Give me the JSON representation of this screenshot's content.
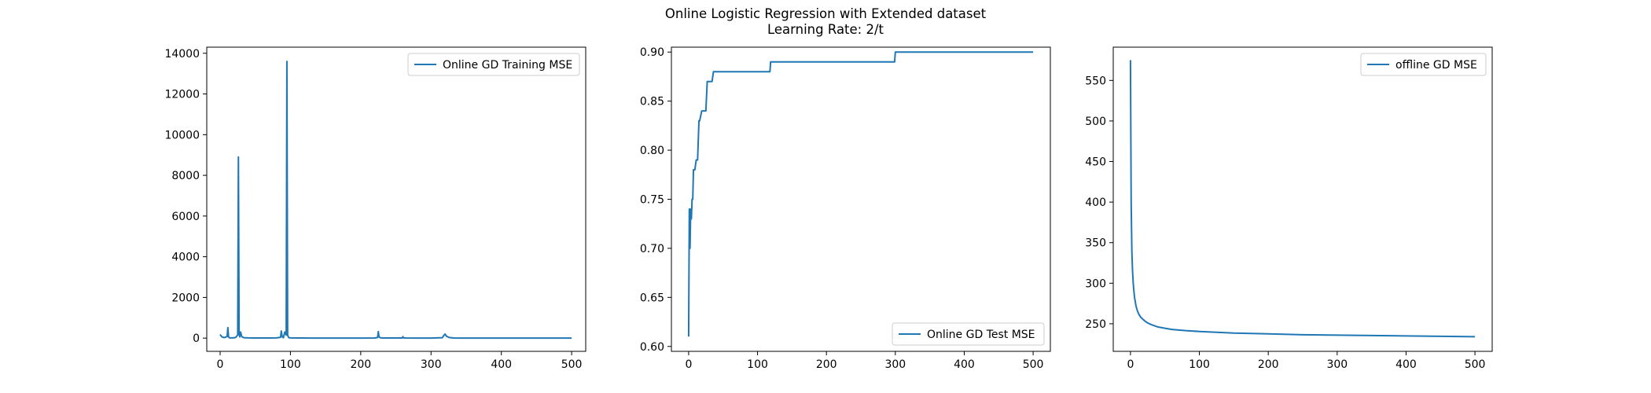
{
  "figure": {
    "title_line1": "Online Logistic Regression with Extended dataset",
    "title_line2": "Learning Rate: 2/t"
  },
  "line_color": "#1f77b4",
  "chart_data": [
    {
      "type": "line",
      "title": "",
      "xlabel": "",
      "ylabel": "",
      "xlim": [
        -19,
        520
      ],
      "ylim": [
        -650,
        14300
      ],
      "xticks": [
        0,
        100,
        200,
        300,
        400,
        500
      ],
      "yticks": [
        0,
        2000,
        4000,
        6000,
        8000,
        10000,
        12000,
        14000
      ],
      "grid": false,
      "legend": "top-right",
      "series": [
        {
          "name": "Online GD Training MSE",
          "x": [
            0,
            2,
            4,
            6,
            8,
            10,
            11,
            12,
            13,
            15,
            18,
            22,
            25,
            26,
            27,
            28,
            29,
            31,
            34,
            40,
            50,
            60,
            70,
            80,
            86,
            87,
            88,
            89,
            90,
            92,
            94,
            95,
            96,
            97,
            98,
            100,
            110,
            130,
            160,
            200,
            220,
            224,
            225,
            226,
            228,
            232,
            250,
            259,
            260,
            261,
            264,
            280,
            300,
            316,
            318,
            320,
            322,
            326,
            332,
            340,
            360,
            400,
            450,
            500
          ],
          "y": [
            180,
            80,
            40,
            30,
            50,
            80,
            520,
            60,
            20,
            10,
            10,
            30,
            150,
            8900,
            200,
            60,
            300,
            60,
            20,
            10,
            5,
            5,
            5,
            10,
            40,
            350,
            120,
            40,
            20,
            300,
            150,
            13600,
            150,
            60,
            20,
            10,
            5,
            3,
            3,
            3,
            5,
            30,
            320,
            60,
            15,
            5,
            5,
            8,
            70,
            12,
            5,
            4,
            3,
            20,
            120,
            200,
            90,
            30,
            8,
            4,
            3,
            2,
            2,
            2
          ]
        }
      ]
    },
    {
      "type": "line",
      "title": "",
      "xlabel": "",
      "ylabel": "",
      "xlim": [
        -25,
        525
      ],
      "ylim": [
        0.595,
        0.905
      ],
      "xticks": [
        0,
        100,
        200,
        300,
        400,
        500
      ],
      "yticks": [
        0.6,
        0.65,
        0.7,
        0.75,
        0.8,
        0.85,
        0.9
      ],
      "grid": false,
      "legend": "bottom-right",
      "series": [
        {
          "name": "Online GD Test MSE",
          "x": [
            0,
            1,
            2,
            3,
            4,
            5,
            6,
            7,
            9,
            11,
            13,
            15,
            16,
            19,
            21,
            23,
            25,
            27,
            29,
            31,
            34,
            36,
            40,
            60,
            100,
            118,
            119,
            200,
            260,
            299,
            300,
            400,
            500
          ],
          "y": [
            0.61,
            0.74,
            0.7,
            0.74,
            0.73,
            0.75,
            0.75,
            0.78,
            0.78,
            0.79,
            0.79,
            0.83,
            0.83,
            0.84,
            0.84,
            0.84,
            0.84,
            0.87,
            0.87,
            0.87,
            0.87,
            0.88,
            0.88,
            0.88,
            0.88,
            0.88,
            0.89,
            0.89,
            0.89,
            0.89,
            0.9,
            0.9,
            0.9
          ]
        }
      ]
    },
    {
      "type": "line",
      "title": "",
      "xlabel": "",
      "ylabel": "",
      "xlim": [
        -25,
        525
      ],
      "ylim": [
        216,
        591
      ],
      "xticks": [
        0,
        100,
        200,
        300,
        400,
        500
      ],
      "yticks": [
        250,
        300,
        350,
        400,
        450,
        500,
        550
      ],
      "grid": false,
      "legend": "top-right",
      "series": [
        {
          "name": "offline GD MSE",
          "x": [
            0,
            1,
            2,
            3,
            4,
            5,
            6,
            8,
            10,
            12,
            15,
            20,
            25,
            30,
            40,
            50,
            60,
            80,
            100,
            125,
            150,
            200,
            250,
            300,
            350,
            400,
            450,
            500
          ],
          "y": [
            575,
            400,
            340,
            315,
            300,
            290,
            282,
            272,
            266,
            262,
            258,
            254,
            251,
            249,
            246,
            244.5,
            243,
            241.5,
            240.5,
            239.5,
            238.5,
            237.5,
            236.5,
            236,
            235.5,
            235,
            234.5,
            234
          ]
        }
      ]
    }
  ]
}
